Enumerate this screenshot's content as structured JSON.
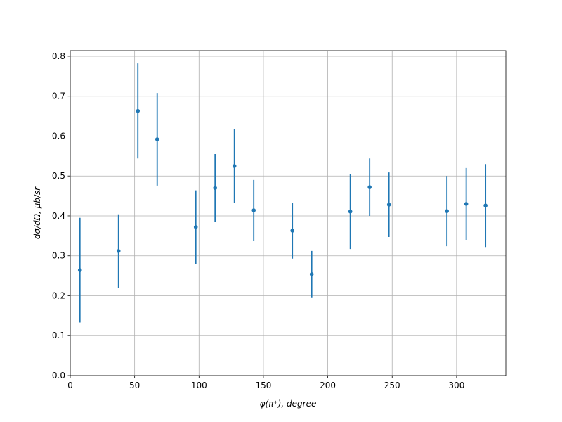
{
  "chart_data": {
    "type": "errorbar",
    "x": [
      7.5,
      37.5,
      52.5,
      67.5,
      97.5,
      112.5,
      127.5,
      142.5,
      172.5,
      187.5,
      217.5,
      232.5,
      247.5,
      292.5,
      307.5,
      322.5
    ],
    "series": [
      {
        "color": "#1f77b4",
        "values": [
          0.264,
          0.312,
          0.663,
          0.592,
          0.372,
          0.47,
          0.525,
          0.414,
          0.363,
          0.254,
          0.411,
          0.472,
          0.428,
          0.412,
          0.43,
          0.426
        ],
        "errors": [
          0.131,
          0.092,
          0.119,
          0.116,
          0.092,
          0.085,
          0.092,
          0.076,
          0.07,
          0.058,
          0.094,
          0.072,
          0.081,
          0.088,
          0.09,
          0.104
        ]
      }
    ],
    "xlabel": "φ(π⁺), degree",
    "ylabel": "dσ/dΩ, μb/sr",
    "xlim": [
      0,
      338.25
    ],
    "ylim": [
      0,
      0.814
    ],
    "xticks": [
      0,
      50,
      100,
      150,
      200,
      250,
      300
    ],
    "yticks": [
      {
        "value": 0,
        "label": "0.0"
      },
      0.1,
      0.2,
      0.3,
      0.4,
      0.5,
      0.6,
      0.7,
      0.8
    ],
    "grid": true
  }
}
